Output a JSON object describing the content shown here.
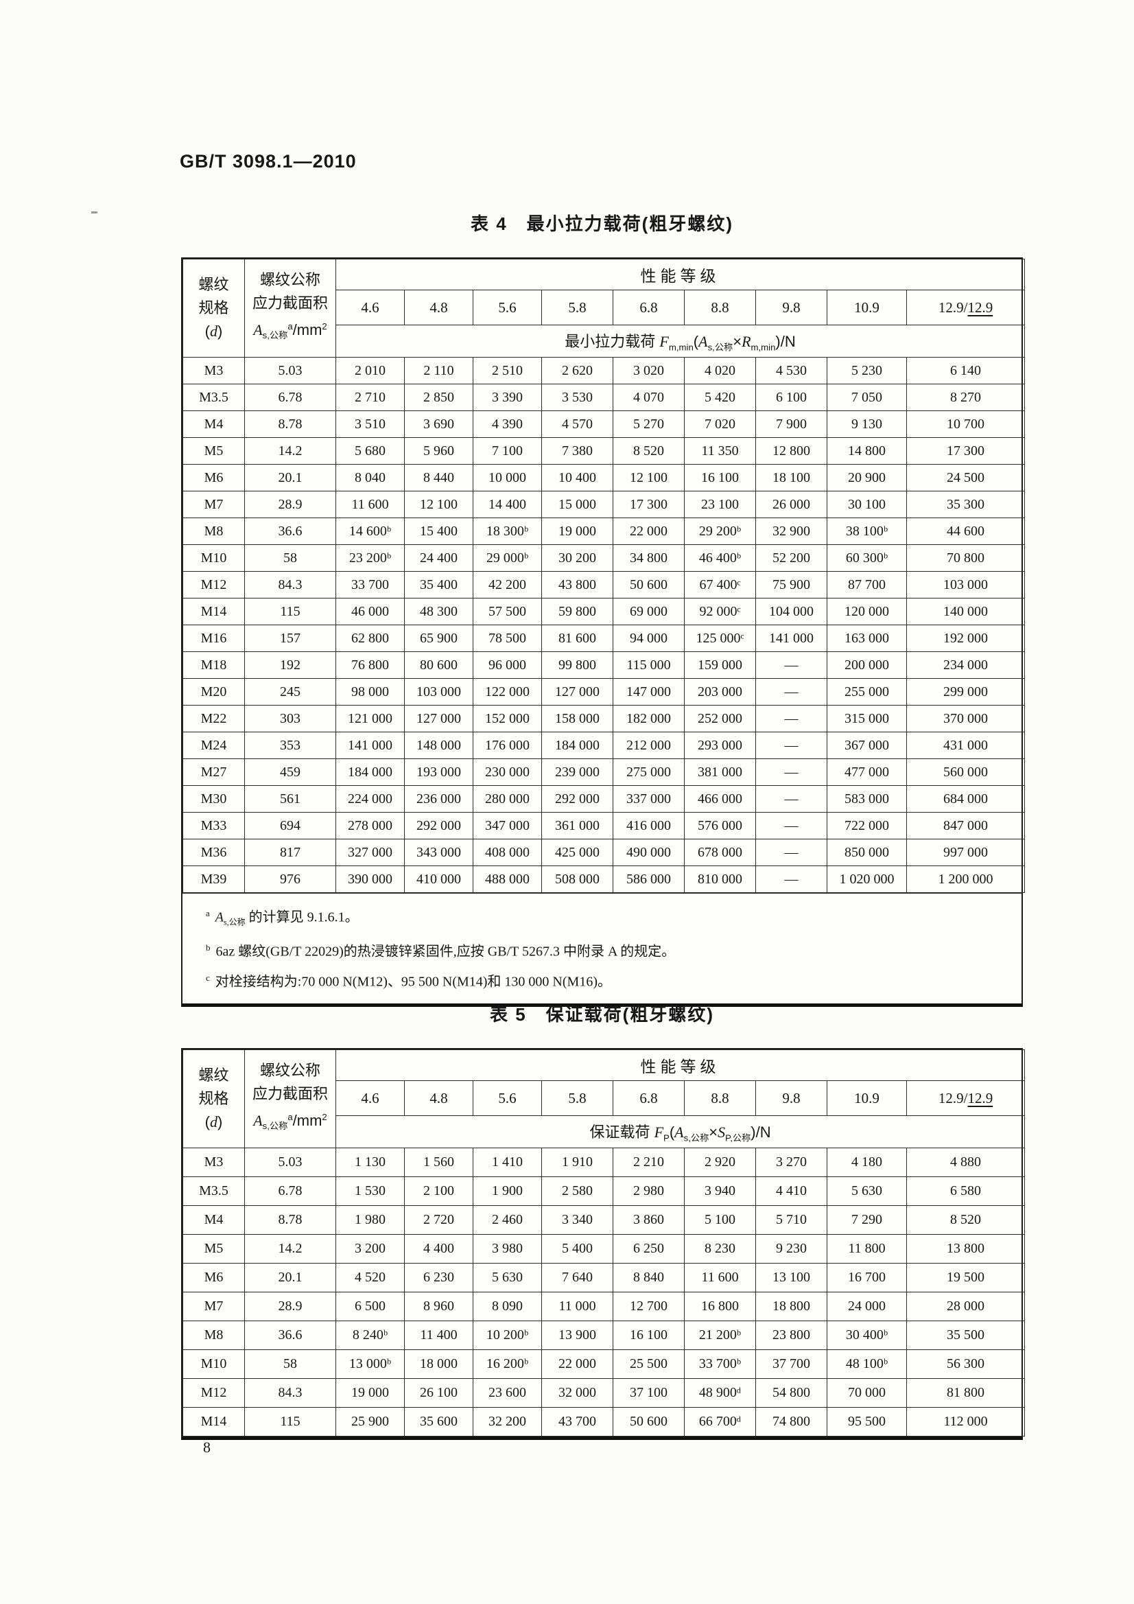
{
  "page": {
    "doc_code": "GB/T 3098.1—2010",
    "page_number": "8"
  },
  "colors": {
    "paper": "#fcfcfa",
    "ink": "#171717",
    "line": "#2b2b2b"
  },
  "table4": {
    "title": "表 4　最小拉力载荷(粗牙螺纹)",
    "col1": {
      "line1": "螺纹",
      "line2": "规格",
      "line3_parts": [
        {
          "t": "("
        },
        {
          "t": "d",
          "style": "it"
        },
        {
          "t": ")"
        }
      ]
    },
    "col2": {
      "line1": "螺纹公称",
      "line2": "应力截面积",
      "line3_parts": [
        {
          "t": "A",
          "style": "it"
        },
        {
          "t": "s,公称",
          "style": "sub"
        },
        {
          "t": "a",
          "style": "sup"
        },
        {
          "t": "/mm"
        },
        {
          "t": "2",
          "style": "sup"
        }
      ]
    },
    "group_label": "性能等级",
    "classes": [
      "4.6",
      "4.8",
      "5.6",
      "5.8",
      "6.8",
      "8.8",
      "9.8",
      "10.9",
      "12.9/12.9"
    ],
    "formula_parts": [
      {
        "t": "最小拉力载荷 "
      },
      {
        "t": "F",
        "style": "it"
      },
      {
        "t": "m,min",
        "style": "sub"
      },
      {
        "t": "("
      },
      {
        "t": "A",
        "style": "it"
      },
      {
        "t": "s,公称",
        "style": "sub"
      },
      {
        "t": "×"
      },
      {
        "t": "R",
        "style": "it"
      },
      {
        "t": "m,min",
        "style": "sub"
      },
      {
        "t": ")/N"
      }
    ],
    "rows": [
      {
        "spec": "M3",
        "area": "5.03",
        "values": [
          "2 010",
          "2 110",
          "2 510",
          "2 620",
          "3 020",
          "4 020",
          "4 530",
          "5 230",
          "6 140"
        ]
      },
      {
        "spec": "M3.5",
        "area": "6.78",
        "values": [
          "2 710",
          "2 850",
          "3 390",
          "3 530",
          "4 070",
          "5 420",
          "6 100",
          "7 050",
          "8 270"
        ]
      },
      {
        "spec": "M4",
        "area": "8.78",
        "values": [
          "3 510",
          "3 690",
          "4 390",
          "4 570",
          "5 270",
          "7 020",
          "7 900",
          "9 130",
          "10 700"
        ]
      },
      {
        "spec": "M5",
        "area": "14.2",
        "values": [
          "5 680",
          "5 960",
          "7 100",
          "7 380",
          "8 520",
          "11 350",
          "12 800",
          "14 800",
          "17 300"
        ]
      },
      {
        "spec": "M6",
        "area": "20.1",
        "values": [
          "8 040",
          "8 440",
          "10 000",
          "10 400",
          "12 100",
          "16 100",
          "18 100",
          "20 900",
          "24 500"
        ]
      },
      {
        "spec": "M7",
        "area": "28.9",
        "values": [
          "11 600",
          "12 100",
          "14 400",
          "15 000",
          "17 300",
          "23 100",
          "26 000",
          "30 100",
          "35 300"
        ]
      },
      {
        "spec": "M8",
        "area": "36.6",
        "values": [
          "14 600ᵇ",
          "15 400",
          "18 300ᵇ",
          "19 000",
          "22 000",
          "29 200ᵇ",
          "32 900",
          "38 100ᵇ",
          "44 600"
        ]
      },
      {
        "spec": "M10",
        "area": "58",
        "values": [
          "23 200ᵇ",
          "24 400",
          "29 000ᵇ",
          "30 200",
          "34 800",
          "46 400ᵇ",
          "52 200",
          "60 300ᵇ",
          "70 800"
        ]
      },
      {
        "spec": "M12",
        "area": "84.3",
        "values": [
          "33 700",
          "35 400",
          "42 200",
          "43 800",
          "50 600",
          "67 400ᶜ",
          "75 900",
          "87 700",
          "103 000"
        ]
      },
      {
        "spec": "M14",
        "area": "115",
        "values": [
          "46 000",
          "48 300",
          "57 500",
          "59 800",
          "69 000",
          "92 000ᶜ",
          "104 000",
          "120 000",
          "140 000"
        ]
      },
      {
        "spec": "M16",
        "area": "157",
        "values": [
          "62 800",
          "65 900",
          "78 500",
          "81 600",
          "94 000",
          "125 000ᶜ",
          "141 000",
          "163 000",
          "192 000"
        ]
      },
      {
        "spec": "M18",
        "area": "192",
        "values": [
          "76 800",
          "80 600",
          "96 000",
          "99 800",
          "115 000",
          "159 000",
          "—",
          "200 000",
          "234 000"
        ]
      },
      {
        "spec": "M20",
        "area": "245",
        "values": [
          "98 000",
          "103 000",
          "122 000",
          "127 000",
          "147 000",
          "203 000",
          "—",
          "255 000",
          "299 000"
        ]
      },
      {
        "spec": "M22",
        "area": "303",
        "values": [
          "121 000",
          "127 000",
          "152 000",
          "158 000",
          "182 000",
          "252 000",
          "—",
          "315 000",
          "370 000"
        ]
      },
      {
        "spec": "M24",
        "area": "353",
        "values": [
          "141 000",
          "148 000",
          "176 000",
          "184 000",
          "212 000",
          "293 000",
          "—",
          "367 000",
          "431 000"
        ]
      },
      {
        "spec": "M27",
        "area": "459",
        "values": [
          "184 000",
          "193 000",
          "230 000",
          "239 000",
          "275 000",
          "381 000",
          "—",
          "477 000",
          "560 000"
        ]
      },
      {
        "spec": "M30",
        "area": "561",
        "values": [
          "224 000",
          "236 000",
          "280 000",
          "292 000",
          "337 000",
          "466 000",
          "—",
          "583 000",
          "684 000"
        ]
      },
      {
        "spec": "M33",
        "area": "694",
        "values": [
          "278 000",
          "292 000",
          "347 000",
          "361 000",
          "416 000",
          "576 000",
          "—",
          "722 000",
          "847 000"
        ]
      },
      {
        "spec": "M36",
        "area": "817",
        "values": [
          "327 000",
          "343 000",
          "408 000",
          "425 000",
          "490 000",
          "678 000",
          "—",
          "850 000",
          "997 000"
        ]
      },
      {
        "spec": "M39",
        "area": "976",
        "values": [
          "390 000",
          "410 000",
          "488 000",
          "508 000",
          "586 000",
          "810 000",
          "—",
          "1 020 000",
          "1 200 000"
        ]
      }
    ],
    "footnotes": [
      {
        "marker": "a",
        "parts": [
          {
            "t": "A",
            "style": "it"
          },
          {
            "t": "s,公称",
            "style": "sub"
          },
          {
            "t": " 的计算见 9.1.6.1。"
          }
        ]
      },
      {
        "marker": "b",
        "parts": [
          {
            "t": "6az 螺纹(GB/T 22029)的热浸镀锌紧固件,应按 GB/T 5267.3 中附录 A 的规定。"
          }
        ]
      },
      {
        "marker": "c",
        "parts": [
          {
            "t": "对栓接结构为:70 000 N(M12)、95 500 N(M14)和 130 000 N(M16)。"
          }
        ]
      }
    ]
  },
  "table5": {
    "title": "表 5　保证载荷(粗牙螺纹)",
    "col1": {
      "line1": "螺纹",
      "line2": "规格",
      "line3_parts": [
        {
          "t": "("
        },
        {
          "t": "d",
          "style": "it"
        },
        {
          "t": ")"
        }
      ]
    },
    "col2": {
      "line1": "螺纹公称",
      "line2": "应力截面积",
      "line3_parts": [
        {
          "t": "A",
          "style": "it"
        },
        {
          "t": "s,公称",
          "style": "sub"
        },
        {
          "t": "a",
          "style": "sup"
        },
        {
          "t": "/mm"
        },
        {
          "t": "2",
          "style": "sup"
        }
      ]
    },
    "group_label": "性能等级",
    "classes": [
      "4.6",
      "4.8",
      "5.6",
      "5.8",
      "6.8",
      "8.8",
      "9.8",
      "10.9",
      "12.9/12.9"
    ],
    "formula_parts": [
      {
        "t": "保证载荷 "
      },
      {
        "t": "F",
        "style": "it"
      },
      {
        "t": "P",
        "style": "sub"
      },
      {
        "t": "("
      },
      {
        "t": "A",
        "style": "it"
      },
      {
        "t": "s,公称",
        "style": "sub"
      },
      {
        "t": "×"
      },
      {
        "t": "S",
        "style": "it"
      },
      {
        "t": "P,公称",
        "style": "sub"
      },
      {
        "t": ")/N"
      }
    ],
    "rows": [
      {
        "spec": "M3",
        "area": "5.03",
        "values": [
          "1 130",
          "1 560",
          "1 410",
          "1 910",
          "2 210",
          "2 920",
          "3 270",
          "4 180",
          "4 880"
        ]
      },
      {
        "spec": "M3.5",
        "area": "6.78",
        "values": [
          "1 530",
          "2 100",
          "1 900",
          "2 580",
          "2 980",
          "3 940",
          "4 410",
          "5 630",
          "6 580"
        ]
      },
      {
        "spec": "M4",
        "area": "8.78",
        "values": [
          "1 980",
          "2 720",
          "2 460",
          "3 340",
          "3 860",
          "5 100",
          "5 710",
          "7 290",
          "8 520"
        ]
      },
      {
        "spec": "M5",
        "area": "14.2",
        "values": [
          "3 200",
          "4 400",
          "3 980",
          "5 400",
          "6 250",
          "8 230",
          "9 230",
          "11 800",
          "13 800"
        ]
      },
      {
        "spec": "M6",
        "area": "20.1",
        "values": [
          "4 520",
          "6 230",
          "5 630",
          "7 640",
          "8 840",
          "11 600",
          "13 100",
          "16 700",
          "19 500"
        ]
      },
      {
        "spec": "M7",
        "area": "28.9",
        "values": [
          "6 500",
          "8 960",
          "8 090",
          "11 000",
          "12 700",
          "16 800",
          "18 800",
          "24 000",
          "28 000"
        ]
      },
      {
        "spec": "M8",
        "area": "36.6",
        "values": [
          "8 240ᵇ",
          "11 400",
          "10 200ᵇ",
          "13 900",
          "16 100",
          "21 200ᵇ",
          "23 800",
          "30 400ᵇ",
          "35 500"
        ]
      },
      {
        "spec": "M10",
        "area": "58",
        "values": [
          "13 000ᵇ",
          "18 000",
          "16 200ᵇ",
          "22 000",
          "25 500",
          "33 700ᵇ",
          "37 700",
          "48 100ᵇ",
          "56 300"
        ]
      },
      {
        "spec": "M12",
        "area": "84.3",
        "values": [
          "19 000",
          "26 100",
          "23 600",
          "32 000",
          "37 100",
          "48 900ᵈ",
          "54 800",
          "70 000",
          "81 800"
        ]
      },
      {
        "spec": "M14",
        "area": "115",
        "values": [
          "25 900",
          "35 600",
          "32 200",
          "43 700",
          "50 600",
          "66 700ᵈ",
          "74 800",
          "95 500",
          "112 000"
        ]
      }
    ]
  }
}
